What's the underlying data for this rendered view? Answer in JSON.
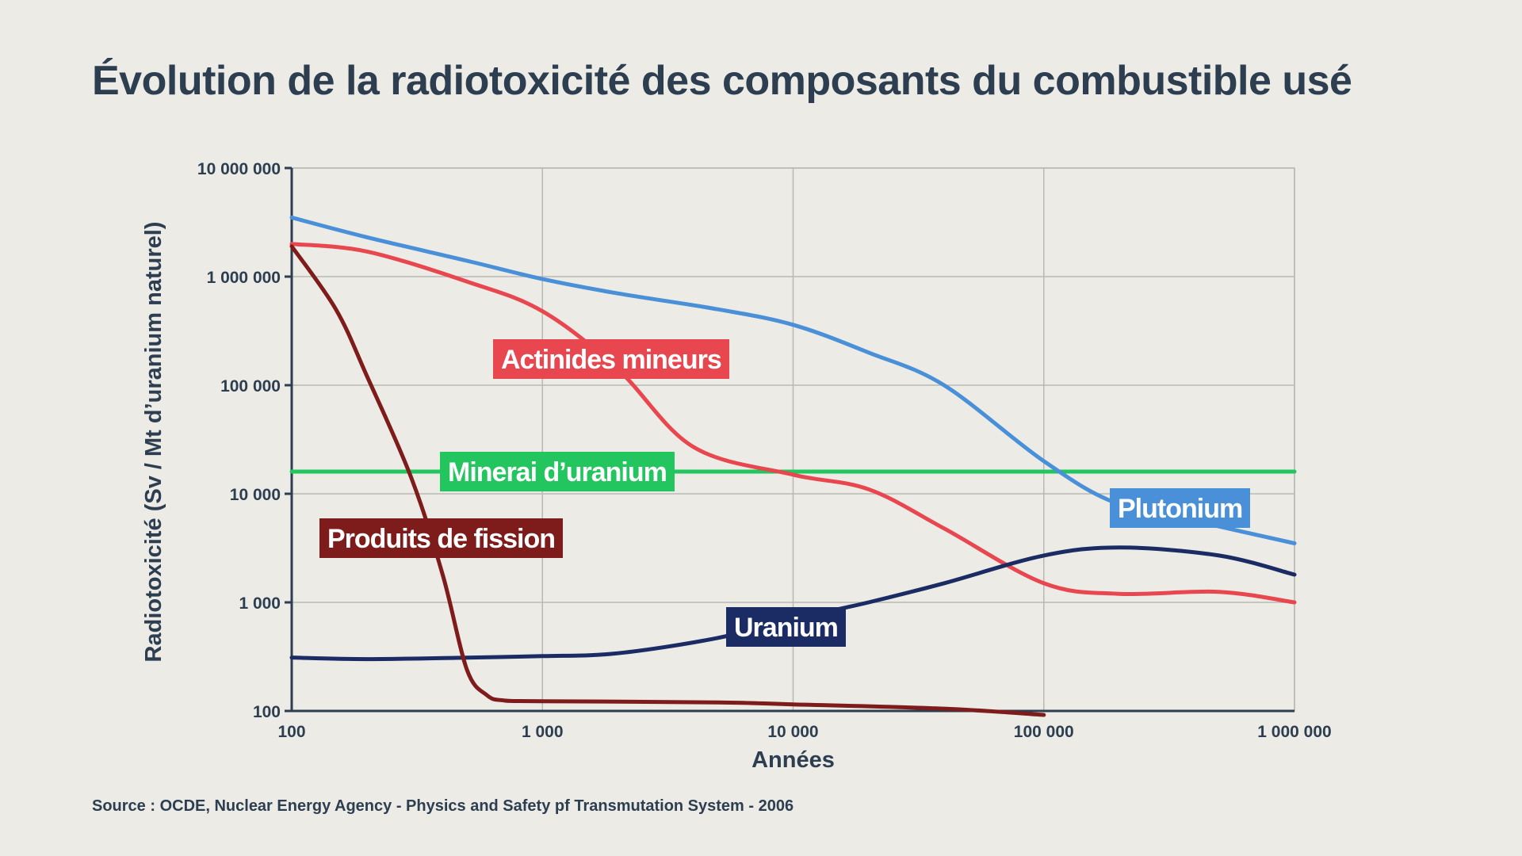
{
  "title": "Évolution de la radiotoxicité des composants du combustible usé",
  "source": "Source : OCDE, Nuclear Energy Agency - Physics and Safety pf Transmutation System - 2006",
  "chart_data": {
    "type": "line",
    "title": "Évolution de la radiotoxicité des composants du combustible usé",
    "xlabel": "Années",
    "ylabel": "Radiotoxicité (Sv / Mt d’uranium naturel)",
    "xscale": "log",
    "yscale": "log",
    "xlim": [
      100,
      1000000
    ],
    "ylim": [
      100,
      10000000
    ],
    "grid": true,
    "x_ticks": [
      {
        "value": 100,
        "label": "100"
      },
      {
        "value": 1000,
        "label": "1 000"
      },
      {
        "value": 10000,
        "label": "10 000"
      },
      {
        "value": 100000,
        "label": "100 000"
      },
      {
        "value": 1000000,
        "label": "1 000 000"
      }
    ],
    "y_ticks": [
      {
        "value": 100,
        "label": "100"
      },
      {
        "value": 1000,
        "label": "1 000"
      },
      {
        "value": 10000,
        "label": "10 000"
      },
      {
        "value": 100000,
        "label": "100 000"
      },
      {
        "value": 1000000,
        "label": "1 000 000"
      },
      {
        "value": 10000000,
        "label": "10 000 000"
      }
    ],
    "series": [
      {
        "name": "Plutonium",
        "color": "#4a90d9",
        "x": [
          100,
          200,
          500,
          1000,
          2000,
          5000,
          10000,
          20000,
          40000,
          100000,
          200000,
          500000,
          1000000
        ],
        "y": [
          3500000,
          2300000,
          1400000,
          950000,
          700000,
          500000,
          360000,
          200000,
          100000,
          20000,
          8000,
          5000,
          3500
        ]
      },
      {
        "name": "Actinides mineurs",
        "color": "#e8474f",
        "x": [
          100,
          200,
          500,
          1000,
          2000,
          4000,
          10000,
          20000,
          40000,
          100000,
          200000,
          500000,
          1000000
        ],
        "y": [
          2000000,
          1700000,
          900000,
          480000,
          140000,
          27000,
          15000,
          11000,
          4800,
          1500,
          1200,
          1250,
          1000
        ]
      },
      {
        "name": "Produits de fission",
        "color": "#7e1c1c",
        "x": [
          100,
          150,
          200,
          300,
          400,
          500,
          600,
          700,
          1000,
          5000,
          10000,
          40000,
          100000
        ],
        "y": [
          1900000,
          500000,
          120000,
          14000,
          1800,
          240,
          140,
          125,
          123,
          120,
          115,
          105,
          92
        ]
      },
      {
        "name": "Uranium",
        "color": "#1b2b63",
        "x": [
          100,
          200,
          500,
          1000,
          2000,
          5000,
          10000,
          20000,
          40000,
          100000,
          200000,
          500000,
          1000000
        ],
        "y": [
          310,
          300,
          310,
          320,
          340,
          470,
          700,
          1000,
          1500,
          2700,
          3200,
          2700,
          1800
        ]
      },
      {
        "name": "Minerai d’uranium",
        "color": "#22c55e",
        "x": [
          100,
          1000000
        ],
        "y": [
          16000,
          16000
        ]
      }
    ],
    "labels": [
      {
        "text": "Actinides mineurs",
        "series": "Actinides mineurs",
        "bg": "#e8474f"
      },
      {
        "text": "Minerai d’uranium",
        "series": "Minerai d’uranium",
        "bg": "#22c55e"
      },
      {
        "text": "Plutonium",
        "series": "Plutonium",
        "bg": "#4a90d9"
      },
      {
        "text": "Produits de fission",
        "series": "Produits de fission",
        "bg": "#7e1c1c"
      },
      {
        "text": "Uranium",
        "series": "Uranium",
        "bg": "#1b2b63"
      }
    ]
  }
}
